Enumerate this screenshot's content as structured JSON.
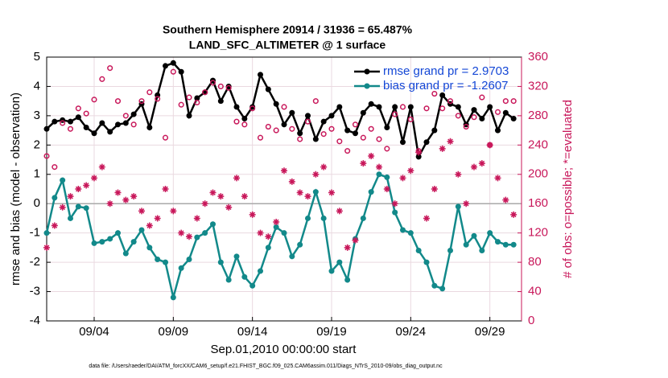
{
  "chart_data": {
    "type": "line",
    "title": "Southern Hemisphere 20914 / 31936 = 65.487%",
    "subtitle": "LAND_SFC_ALTIMETER @ 1 surface",
    "xlabel": "Sep.01,2010 00:00:00 start",
    "ylabel": "rmse and bias (model - observation)",
    "y2label": "# of obs: o=possible; *=evaluated",
    "footnote": "data file: /Users/raeder/DAI/ATM_forcXX/CAM6_setup/f.e21.FHIST_BGC.f09_025.CAM6assim.011/Diags_NTrS_2010-09/obs_diag_output.nc",
    "xlim": [
      0,
      30
    ],
    "xticks": [
      {
        "value": 3,
        "label": "09/04"
      },
      {
        "value": 8,
        "label": "09/09"
      },
      {
        "value": 13,
        "label": "09/14"
      },
      {
        "value": 18,
        "label": "09/19"
      },
      {
        "value": 23,
        "label": "09/24"
      },
      {
        "value": 28,
        "label": "09/29"
      }
    ],
    "ylim": [
      -4,
      5
    ],
    "yticks": [
      -4,
      -3,
      -2,
      -1,
      0,
      1,
      2,
      3,
      4,
      5
    ],
    "y2lim": [
      0,
      360
    ],
    "y2ticks": [
      0,
      40,
      80,
      120,
      160,
      200,
      240,
      280,
      320,
      360
    ],
    "grid": true,
    "zero_line": true,
    "legend": "upper right",
    "legend_color": "#1447d6",
    "y2_color": "#c8175a",
    "x": [
      0,
      0.5,
      1,
      1.5,
      2,
      2.5,
      3,
      3.5,
      4,
      4.5,
      5,
      5.5,
      6,
      6.5,
      7,
      7.5,
      8,
      8.5,
      9,
      9.5,
      10,
      10.5,
      11,
      11.5,
      12,
      12.5,
      13,
      13.5,
      14,
      14.5,
      15,
      15.5,
      16,
      16.5,
      17,
      17.5,
      18,
      18.5,
      19,
      19.5,
      20,
      20.5,
      21,
      21.5,
      22,
      22.5,
      23,
      23.5,
      24,
      24.5,
      25,
      25.5,
      26,
      26.5,
      27,
      27.5,
      28,
      28.5,
      29,
      29.5
    ],
    "series": [
      {
        "name": "rmse grand pr = 2.9703",
        "color": "#000000",
        "axis": "y",
        "marker": "dot",
        "line": true,
        "values": [
          2.55,
          2.8,
          2.85,
          2.8,
          2.95,
          2.6,
          2.4,
          2.75,
          2.45,
          2.7,
          2.75,
          3.05,
          3.4,
          2.6,
          3.7,
          4.7,
          4.8,
          4.5,
          3.0,
          3.6,
          3.8,
          4.2,
          3.5,
          4.0,
          3.3,
          2.9,
          3.3,
          4.4,
          3.9,
          3.4,
          2.7,
          3.1,
          2.4,
          3.0,
          2.2,
          2.8,
          3.0,
          3.3,
          2.5,
          2.4,
          3.1,
          3.4,
          3.3,
          2.6,
          3.3,
          2.1,
          3.3,
          1.6,
          2.1,
          2.5,
          3.7,
          3.4,
          3.3,
          2.7,
          3.2,
          2.9,
          3.3,
          2.5,
          3.1,
          2.9
        ]
      },
      {
        "name": "bias grand pr = -1.2607",
        "color": "#12898a",
        "axis": "y",
        "marker": "dot",
        "line": true,
        "values": [
          -1.0,
          0.2,
          0.8,
          -0.5,
          -0.1,
          -0.15,
          -1.35,
          -1.3,
          -1.2,
          -1.0,
          -1.7,
          -1.3,
          -0.9,
          -1.5,
          -1.9,
          -2.0,
          -3.2,
          -2.2,
          -1.9,
          -1.15,
          -1.0,
          -0.7,
          -2.0,
          -2.6,
          -1.8,
          -2.5,
          -2.8,
          -2.3,
          -1.5,
          -0.8,
          -1.0,
          -1.8,
          -1.4,
          -0.5,
          0.4,
          -0.5,
          -2.3,
          -2.0,
          -2.6,
          -1.2,
          -0.5,
          0.4,
          1.0,
          0.9,
          -0.3,
          -0.9,
          -1.0,
          -1.6,
          -2.0,
          -2.8,
          -2.9,
          -1.6,
          -0.1,
          -1.4,
          -1.1,
          -1.6,
          -1.0,
          -1.3,
          -1.4,
          -1.4
        ]
      },
      {
        "color": "#c8175a",
        "axis": "y2",
        "marker": "circle",
        "line": false,
        "values": [
          225,
          210,
          270,
          262,
          290,
          283,
          302,
          330,
          345,
          300,
          280,
          268,
          300,
          312,
          303,
          250,
          340,
          295,
          305,
          298,
          312,
          325,
          320,
          318,
          272,
          268,
          290,
          250,
          265,
          260,
          292,
          262,
          248,
          272,
          300,
          255,
          262,
          245,
          232,
          268,
          250,
          262,
          248,
          235,
          282,
          292,
          275,
          232,
          290,
          310,
          290,
          300,
          280,
          265,
          278,
          305,
          240,
          285,
          300,
          300
        ]
      },
      {
        "color": "#c8175a",
        "axis": "y2",
        "marker": "asterisk",
        "line": false,
        "values": [
          100,
          130,
          155,
          170,
          180,
          185,
          195,
          210,
          160,
          175,
          165,
          170,
          150,
          130,
          140,
          180,
          150,
          120,
          115,
          140,
          160,
          175,
          170,
          155,
          195,
          170,
          145,
          120,
          115,
          135,
          205,
          190,
          175,
          170,
          200,
          210,
          175,
          150,
          100,
          110,
          215,
          225,
          210,
          180,
          160,
          195,
          205,
          230,
          140,
          180,
          235,
          245,
          200,
          160,
          210,
          215,
          240,
          195,
          165,
          145
        ]
      }
    ]
  }
}
